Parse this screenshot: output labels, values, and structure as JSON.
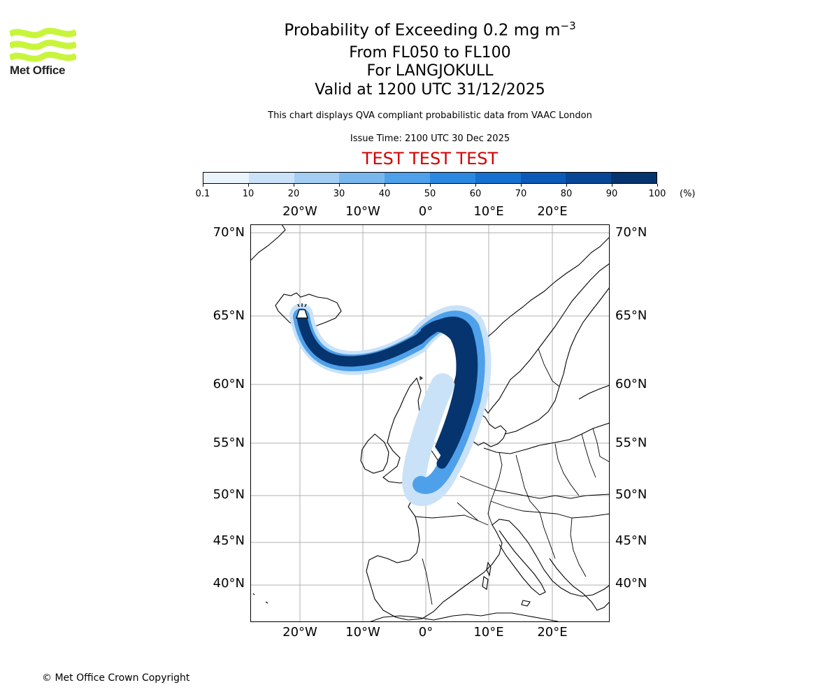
{
  "logo": {
    "text": "Met Office",
    "color": "#c8f53c"
  },
  "title": {
    "line1_main": "Probability of Exceeding 0.2 mg m",
    "line1_sup": "−3",
    "line2": "From FL050 to FL100",
    "line3": "For LANGJOKULL",
    "line4": "Valid at 1200 UTC 31/12/2025"
  },
  "description": "This chart displays QVA compliant probabilistic data from VAAC London",
  "issue_time": "Issue Time: 2100 UTC 30 Dec 2025",
  "test_banner": "TEST TEST TEST",
  "test_color": "#d10000",
  "colorbar": {
    "unit": "(%)",
    "ticks": [
      "0.1",
      "10",
      "20",
      "30",
      "40",
      "50",
      "60",
      "70",
      "80",
      "90",
      "100"
    ],
    "colors": [
      "#eaf4fd",
      "#c9e2f8",
      "#a3cdf3",
      "#78b7ee",
      "#4ea0ea",
      "#2a88e0",
      "#1670cf",
      "#0b5ab7",
      "#074796",
      "#06346f"
    ]
  },
  "map": {
    "volcano": "LANGJOKULL",
    "lon_labels": [
      "20°W",
      "10°W",
      "0°",
      "10°E",
      "20°E"
    ],
    "lat_labels": [
      "70°N",
      "65°N",
      "60°N",
      "55°N",
      "50°N",
      "45°N",
      "40°N"
    ],
    "plume_color_dark": "#06346f"
  },
  "copyright": "© Met Office Crown Copyright"
}
